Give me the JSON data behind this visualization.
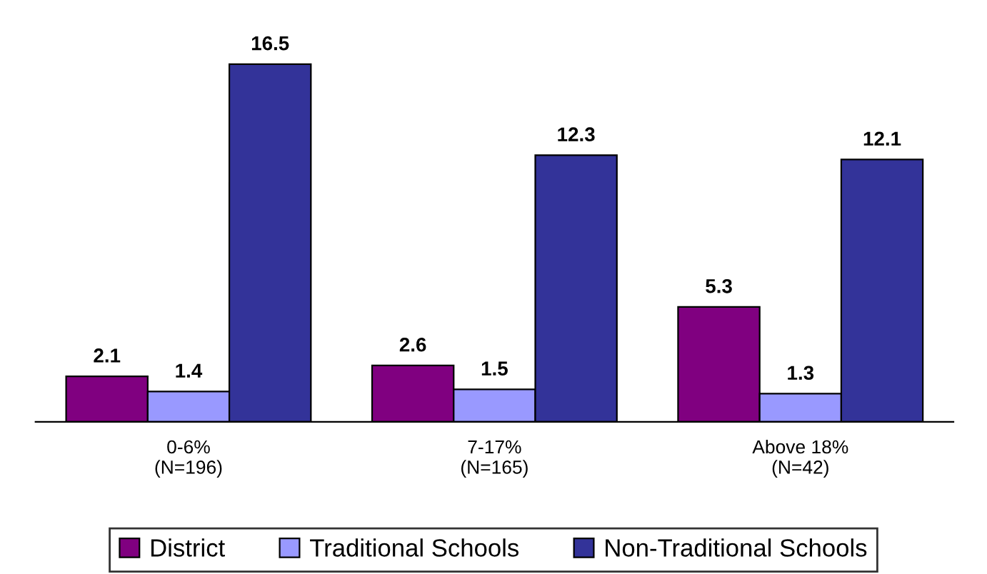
{
  "chart_data": {
    "type": "bar",
    "categories": [
      "0-6%\n(N=196)",
      "7-17%\n(N=165)",
      "Above 18%\n(N=42)"
    ],
    "series": [
      {
        "name": "District",
        "color": "#800080",
        "values": [
          2.1,
          2.6,
          5.3
        ]
      },
      {
        "name": "Traditional Schools",
        "color": "#9999ff",
        "values": [
          1.4,
          1.5,
          1.3
        ]
      },
      {
        "name": "Non-Traditional Schools",
        "color": "#333399",
        "values": [
          16.5,
          12.3,
          12.1
        ]
      }
    ],
    "data_labels": true,
    "legend": "bottom",
    "grid": false
  }
}
